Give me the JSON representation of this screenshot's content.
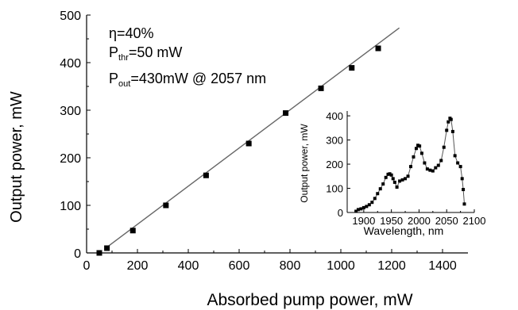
{
  "chart_data": [
    {
      "type": "scatter",
      "title": "",
      "xlabel": "Absorbed pump power, mW",
      "ylabel": "Output power, mW",
      "xlim": [
        0,
        1500
      ],
      "ylim": [
        0,
        500
      ],
      "xticks": [
        0,
        200,
        400,
        600,
        800,
        1000,
        1200,
        1400
      ],
      "yticks": [
        0,
        100,
        200,
        300,
        400,
        500
      ],
      "grid": false,
      "annotations": {
        "eta": "η=40%",
        "pthr_prefix": "P",
        "pthr_sub": "thr",
        "pthr_value": "=50 mW",
        "pout_prefix": "P",
        "pout_sub": "out",
        "pout_value": "=430mW @ 2057 nm"
      },
      "series": [
        {
          "kind": "points",
          "x": [
            50,
            80,
            182,
            312,
            470,
            638,
            783,
            922,
            1043,
            1147
          ],
          "y": [
            0,
            10,
            47,
            100,
            163,
            230,
            294,
            346,
            389,
            430
          ],
          "color": "#000000"
        },
        {
          "kind": "fit-line",
          "x": [
            70,
            1230
          ],
          "y": [
            8,
            473
          ],
          "color": "#666666"
        }
      ]
    },
    {
      "type": "line",
      "title": "",
      "xlabel": "Wavelength, nm",
      "ylabel": "Output power, mW",
      "xlim": [
        1870,
        2100
      ],
      "ylim": [
        0,
        420
      ],
      "xticks": [
        1900,
        1950,
        2000,
        2050,
        2100
      ],
      "yticks": [
        0,
        100,
        200,
        300,
        400
      ],
      "grid": false,
      "series": [
        {
          "x": [
            1886,
            1890,
            1895,
            1900,
            1905,
            1910,
            1915,
            1920,
            1925,
            1930,
            1935,
            1940,
            1944,
            1947,
            1950,
            1953,
            1956,
            1960,
            1965,
            1970,
            1975,
            1980,
            1985,
            1990,
            1995,
            1998,
            2001,
            2005,
            2010,
            2015,
            2020,
            2025,
            2030,
            2035,
            2040,
            2045,
            2050,
            2053,
            2056,
            2058,
            2061,
            2065,
            2070,
            2075,
            2078,
            2080,
            2082
          ],
          "y": [
            5,
            12,
            15,
            20,
            25,
            32,
            42,
            58,
            78,
            98,
            118,
            145,
            158,
            160,
            155,
            140,
            125,
            105,
            130,
            135,
            140,
            150,
            190,
            230,
            265,
            278,
            275,
            245,
            205,
            180,
            175,
            172,
            185,
            195,
            215,
            270,
            340,
            375,
            390,
            385,
            335,
            235,
            205,
            190,
            140,
            95,
            35
          ],
          "color": "#000000"
        }
      ]
    }
  ]
}
